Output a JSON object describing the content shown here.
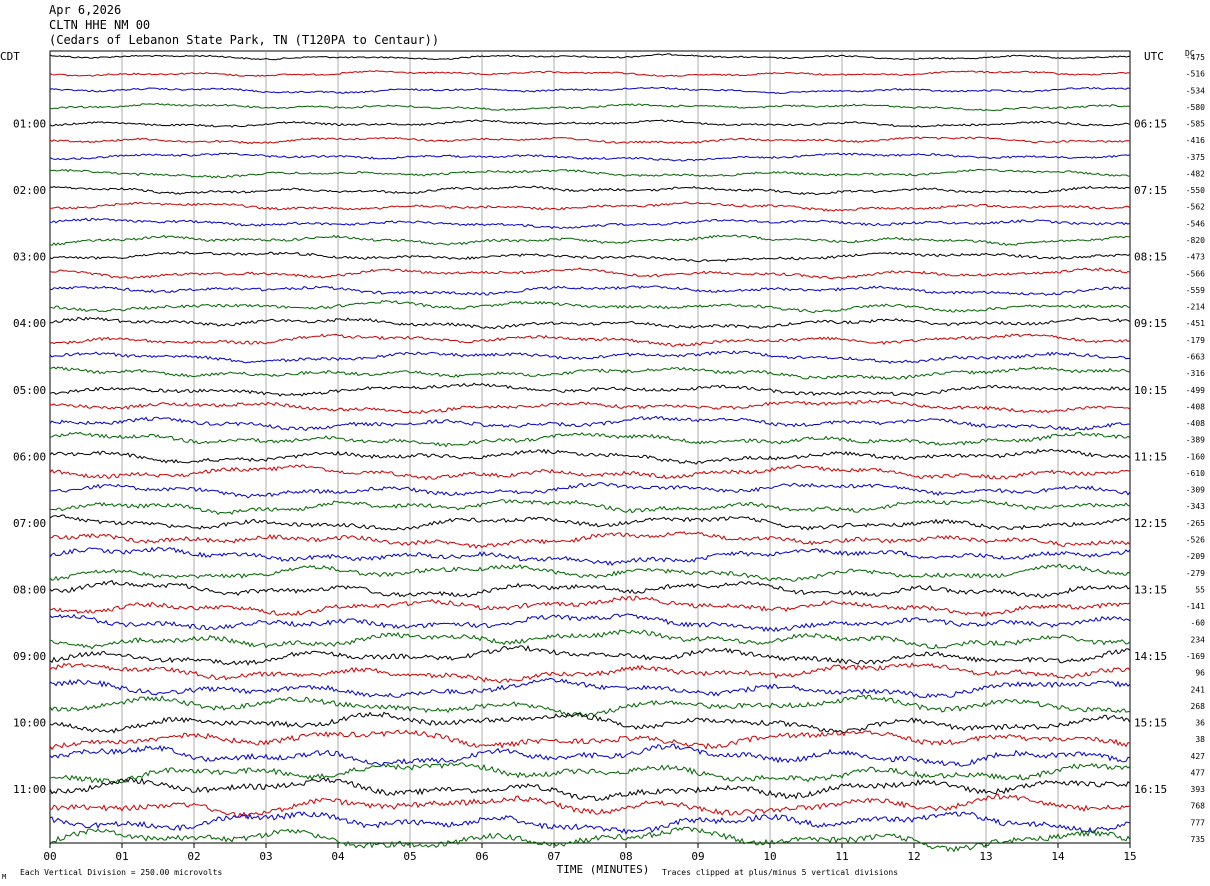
{
  "header": {
    "date": "Apr 6,2026",
    "station": "CLTN HHE NM 00",
    "location": "(Cedars of Lebanon State Park, TN (T120PA to Centaur))"
  },
  "left_tz": "CDT",
  "right_tz": "UTC",
  "dc_label": "DC",
  "footer": {
    "scale_note": "Each Vertical Division =  250.00 microvolts",
    "clip_note": "Traces clipped at plus/minus 5 vertical divisions",
    "corner_mark": "M"
  },
  "colors": [
    "#000000",
    "#cc0000",
    "#0000cc",
    "#006600"
  ],
  "chart_data": {
    "type": "line",
    "xlabel": "TIME (MINUTES)",
    "x_ticks": [
      "00",
      "01",
      "02",
      "03",
      "04",
      "05",
      "06",
      "07",
      "08",
      "09",
      "10",
      "11",
      "12",
      "13",
      "14",
      "15"
    ],
    "xlim": [
      0,
      15
    ],
    "grid": true,
    "trace_count": 48,
    "left_hour_labels": [
      "01:00",
      "02:00",
      "03:00",
      "04:00",
      "05:00",
      "06:00",
      "07:00",
      "08:00",
      "09:00",
      "10:00",
      "11:00"
    ],
    "right_hour_labels": [
      "06:15",
      "07:15",
      "08:15",
      "09:15",
      "10:15",
      "11:15",
      "12:15",
      "13:15",
      "14:15",
      "15:15",
      "16:15"
    ],
    "dc_offsets": [
      "-475",
      "-516",
      "-534",
      "-580",
      "-585",
      "-416",
      "-375",
      "-482",
      "-550",
      "-562",
      "-546",
      "-820",
      "-473",
      "-566",
      "-559",
      "-214",
      "-451",
      "-179",
      "-663",
      "-316",
      "-499",
      "-408",
      "-408",
      "-389",
      "-160",
      "-610",
      "-309",
      "-343",
      "-265",
      "-526",
      "-209",
      "-279",
      "55",
      "-141",
      "-60",
      "234",
      "-169",
      "96",
      "241",
      "268",
      "36",
      "38",
      "427",
      "477",
      "393",
      "768",
      "777",
      "735"
    ]
  }
}
